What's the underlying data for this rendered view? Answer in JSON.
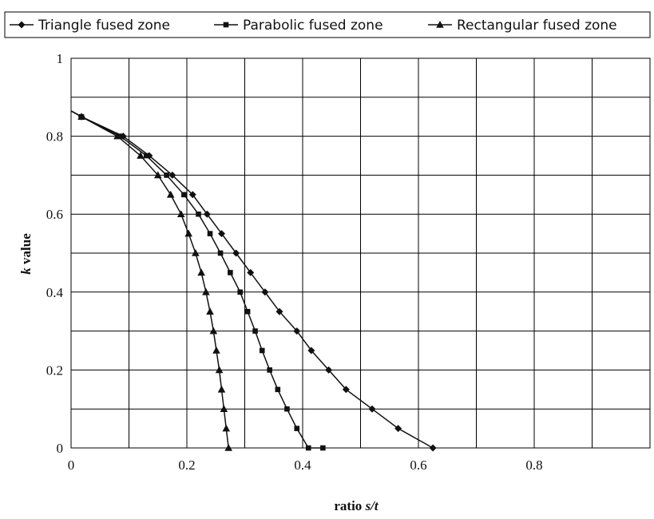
{
  "chart_data": {
    "type": "line",
    "title": "",
    "xlabel_plain": "ratio ",
    "xlabel_italic": "s/t",
    "ylabel_italic": "k",
    "ylabel_plain": "  value",
    "xlim": [
      0,
      1.0
    ],
    "ylim": [
      0,
      1
    ],
    "xticks": [
      0,
      0.2,
      0.4,
      0.6,
      0.8
    ],
    "xtick_labels": [
      "0",
      "0.2",
      "0.4",
      "0.6",
      "0.8"
    ],
    "yticks": [
      0,
      0.2,
      0.4,
      0.6,
      0.8,
      1
    ],
    "ytick_labels": [
      "0",
      "0.2",
      "0.4",
      "0.6",
      "0.8",
      "1"
    ],
    "grid": true,
    "legend_position": "top",
    "series": [
      {
        "name": "Triangle fused zone",
        "marker": "diamond",
        "x": [
          0.018,
          0.09,
          0.135,
          0.175,
          0.21,
          0.235,
          0.26,
          0.285,
          0.31,
          0.335,
          0.36,
          0.39,
          0.415,
          0.445,
          0.475,
          0.52,
          0.565,
          0.625
        ],
        "y": [
          0.85,
          0.8,
          0.75,
          0.7,
          0.65,
          0.6,
          0.55,
          0.5,
          0.45,
          0.4,
          0.35,
          0.3,
          0.25,
          0.2,
          0.15,
          0.1,
          0.05,
          0.0
        ]
      },
      {
        "name": "Parabolic fused zone",
        "marker": "square",
        "x": [
          0.018,
          0.085,
          0.13,
          0.165,
          0.195,
          0.22,
          0.24,
          0.258,
          0.275,
          0.292,
          0.305,
          0.318,
          0.33,
          0.343,
          0.357,
          0.373,
          0.39,
          0.41,
          0.435
        ],
        "y": [
          0.85,
          0.8,
          0.75,
          0.7,
          0.65,
          0.6,
          0.55,
          0.5,
          0.45,
          0.4,
          0.35,
          0.3,
          0.25,
          0.2,
          0.15,
          0.1,
          0.05,
          0.0,
          0.0
        ]
      },
      {
        "name": "Rectangular fused zone",
        "marker": "triangle",
        "x": [
          0.018,
          0.08,
          0.12,
          0.15,
          0.172,
          0.19,
          0.203,
          0.215,
          0.225,
          0.233,
          0.24,
          0.246,
          0.251,
          0.256,
          0.26,
          0.264,
          0.268,
          0.272
        ],
        "y": [
          0.85,
          0.8,
          0.75,
          0.7,
          0.65,
          0.6,
          0.55,
          0.5,
          0.45,
          0.4,
          0.35,
          0.3,
          0.25,
          0.2,
          0.15,
          0.1,
          0.05,
          0.0
        ]
      }
    ]
  }
}
